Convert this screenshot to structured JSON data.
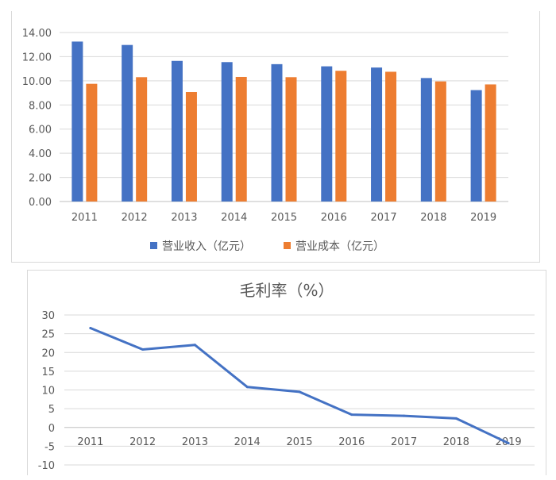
{
  "chart_data": [
    {
      "type": "bar",
      "categories": [
        "2011",
        "2012",
        "2013",
        "2014",
        "2015",
        "2016",
        "2017",
        "2018",
        "2019"
      ],
      "series": [
        {
          "name": "营业收入（亿元）",
          "values": [
            13.25,
            12.97,
            11.65,
            11.55,
            11.38,
            11.2,
            11.1,
            10.23,
            9.23
          ],
          "color": "#4472c4"
        },
        {
          "name": "营业成本（亿元）",
          "values": [
            9.75,
            10.3,
            9.07,
            10.32,
            10.3,
            10.83,
            10.75,
            9.95,
            9.7
          ],
          "color": "#ed7d31"
        }
      ],
      "yticks": [
        "0.00",
        "2.00",
        "4.00",
        "6.00",
        "8.00",
        "10.00",
        "12.00",
        "14.00"
      ],
      "ylim": [
        0,
        14
      ],
      "grid": true,
      "legend_position": "bottom"
    },
    {
      "type": "line",
      "title": "毛利率（%）",
      "categories": [
        "2011",
        "2012",
        "2013",
        "2014",
        "2015",
        "2016",
        "2017",
        "2018",
        "2019"
      ],
      "series": [
        {
          "values": [
            26.5,
            20.8,
            22.0,
            10.8,
            9.5,
            3.4,
            3.1,
            2.4,
            -4.2
          ],
          "color": "#4472c4"
        }
      ],
      "yticks": [
        "-10",
        "-5",
        "0",
        "5",
        "10",
        "15",
        "20",
        "25",
        "30"
      ],
      "ylim": [
        -10,
        30
      ],
      "grid": true
    }
  ]
}
